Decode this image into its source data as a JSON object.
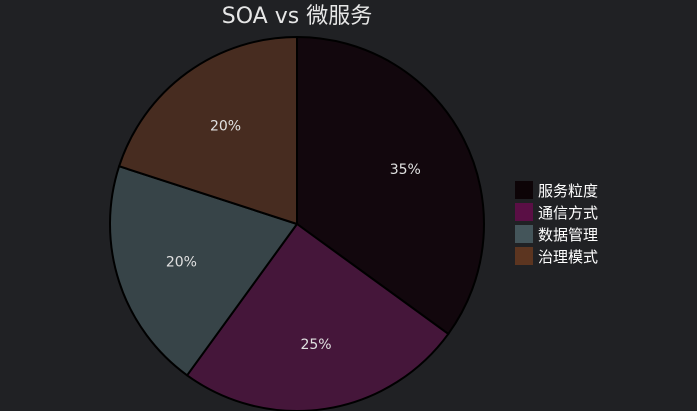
{
  "chart_data": {
    "type": "pie",
    "title": "SOA vs 微服务",
    "categories": [
      "服务粒度",
      "通信方式",
      "数据管理",
      "治理模式"
    ],
    "values": [
      35,
      25,
      20,
      20
    ],
    "labels": [
      "35%",
      "25%",
      "20%",
      "20%"
    ],
    "colors": [
      "#12070d",
      "#45163a",
      "#374448",
      "#472c20"
    ],
    "legend_colors": [
      "#0d0407",
      "#5a0f45",
      "#44555a",
      "#5c3520"
    ],
    "start_angle": "top (12 o'clock)",
    "direction": "clockwise",
    "legend_position": "right"
  }
}
